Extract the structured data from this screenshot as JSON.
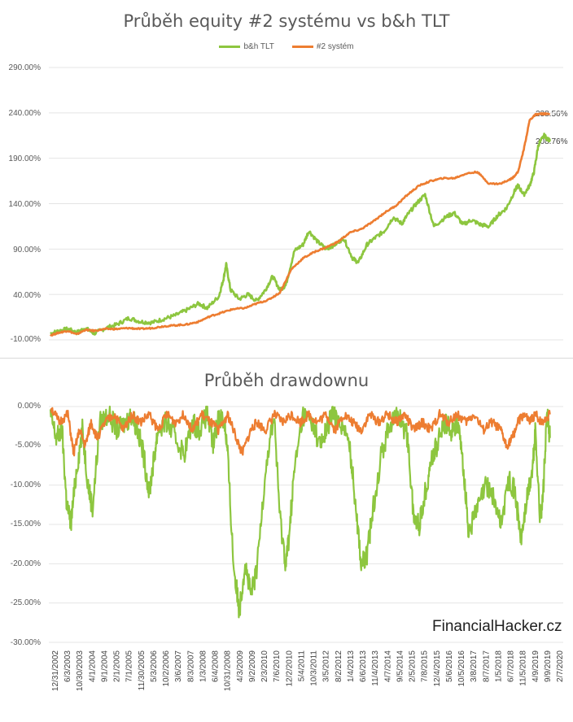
{
  "chart_data": [
    {
      "type": "line",
      "title": "Průběh equity #2 systému vs b&h TLT",
      "ylim": [
        -10,
        290
      ],
      "yticks": [
        "290.00%",
        "240.00%",
        "190.00%",
        "140.00%",
        "90.00%",
        "40.00%",
        "-10.00%"
      ],
      "ytick_values": [
        290,
        240,
        190,
        140,
        90,
        40,
        -10
      ],
      "legend_position": "top",
      "grid": true,
      "series": [
        {
          "name": "b&h TLT",
          "color": "#8dc63f",
          "x": [
            2002.9,
            2003.2,
            2003.5,
            2003.8,
            2004.1,
            2004.4,
            2004.8,
            2005.2,
            2005.6,
            2006.0,
            2006.4,
            2006.8,
            2007.2,
            2007.6,
            2008.0,
            2008.3,
            2008.7,
            2008.85,
            2008.95,
            2009.1,
            2009.4,
            2009.7,
            2010.0,
            2010.3,
            2010.55,
            2010.8,
            2011.0,
            2011.3,
            2011.6,
            2011.8,
            2012.1,
            2012.4,
            2012.7,
            2013.0,
            2013.3,
            2013.5,
            2013.8,
            2014.1,
            2014.4,
            2014.7,
            2015.0,
            2015.2,
            2015.5,
            2015.8,
            2016.1,
            2016.5,
            2016.8,
            2017.1,
            2017.4,
            2017.7,
            2018.0,
            2018.3,
            2018.6,
            2018.9,
            2019.0,
            2019.2,
            2019.4,
            2019.55,
            2019.7,
            2019.9,
            2020.1
          ],
          "y": [
            -3,
            0,
            2,
            -2,
            3,
            -3,
            3,
            7,
            14,
            10,
            9,
            13,
            17,
            23,
            30,
            25,
            38,
            56,
            73,
            45,
            35,
            40,
            33,
            45,
            60,
            45,
            50,
            88,
            95,
            110,
            98,
            90,
            95,
            102,
            80,
            75,
            95,
            103,
            110,
            125,
            118,
            128,
            140,
            150,
            115,
            125,
            130,
            117,
            122,
            117,
            115,
            127,
            135,
            155,
            160,
            150,
            160,
            175,
            205,
            215,
            208.76
          ]
        },
        {
          "name": "#2 systém",
          "color": "#ed7d31",
          "x": [
            2002.9,
            2003.2,
            2003.5,
            2003.8,
            2004.1,
            2004.4,
            2004.8,
            2005.2,
            2005.6,
            2006.0,
            2006.4,
            2006.8,
            2007.2,
            2007.6,
            2008.0,
            2008.4,
            2008.8,
            2009.2,
            2009.6,
            2010.0,
            2010.4,
            2010.8,
            2011.2,
            2011.6,
            2012.0,
            2012.4,
            2012.8,
            2013.2,
            2013.6,
            2014.0,
            2014.4,
            2014.8,
            2015.2,
            2015.6,
            2016.0,
            2016.4,
            2016.8,
            2017.2,
            2017.6,
            2018.0,
            2018.4,
            2018.8,
            2019.0,
            2019.2,
            2019.4,
            2019.6,
            2019.8,
            2020.1
          ],
          "y": [
            -5,
            -2,
            0,
            -4,
            1,
            0,
            2,
            2,
            3,
            2,
            3,
            5,
            6,
            7,
            10,
            16,
            20,
            24,
            25,
            30,
            34,
            42,
            68,
            80,
            87,
            92,
            98,
            108,
            112,
            120,
            130,
            138,
            150,
            160,
            165,
            168,
            168,
            173,
            175,
            162,
            162,
            168,
            175,
            200,
            232,
            238,
            239,
            238.56
          ]
        }
      ],
      "end_labels": [
        "238.56%",
        "208.76%"
      ]
    },
    {
      "type": "line",
      "title": "Průběh drawdownu",
      "ylim": [
        -30,
        0
      ],
      "yticks": [
        "0.00%",
        "-5.00%",
        "-10.00%",
        "-15.00%",
        "-20.00%",
        "-25.00%",
        "-30.00%"
      ],
      "ytick_values": [
        0,
        -5,
        -10,
        -15,
        -20,
        -25,
        -30
      ],
      "grid": true,
      "xticks": [
        "12/31/2002",
        "6/3/2003",
        "10/30/2003",
        "4/1/2004",
        "9/1/2004",
        "2/1/2005",
        "7/1/2005",
        "11/30/2005",
        "5/3/2006",
        "10/2/2006",
        "3/6/2007",
        "8/3/2007",
        "1/3/2008",
        "6/4/2008",
        "10/31/2008",
        "4/3/2009",
        "9/2/2009",
        "2/3/2010",
        "7/6/2010",
        "12/2/2010",
        "5/4/2011",
        "10/3/2011",
        "3/5/2012",
        "8/2/2012",
        "1/4/2013",
        "6/6/2013",
        "11/4/2013",
        "4/7/2014",
        "9/5/2014",
        "2/5/2015",
        "7/8/2015",
        "12/4/2015",
        "5/6/2016",
        "10/5/2016",
        "3/8/2017",
        "8/7/2017",
        "1/5/2018",
        "6/7/2018",
        "11/5/2018",
        "4/9/2019",
        "9/9/2019",
        "2/7/2020"
      ],
      "series": [
        {
          "name": "b&h TLT",
          "color": "#8dc63f",
          "x": [
            2002.9,
            2003.1,
            2003.3,
            2003.45,
            2003.6,
            2003.8,
            2004.0,
            2004.2,
            2004.35,
            2004.6,
            2004.9,
            2005.2,
            2005.5,
            2005.7,
            2005.9,
            2006.1,
            2006.3,
            2006.45,
            2006.6,
            2006.9,
            2007.2,
            2007.5,
            2007.8,
            2008.0,
            2008.3,
            2008.5,
            2008.7,
            2008.9,
            2009.0,
            2009.2,
            2009.4,
            2009.6,
            2009.8,
            2010.0,
            2010.3,
            2010.6,
            2010.8,
            2011.0,
            2011.1,
            2011.3,
            2011.6,
            2011.9,
            2012.2,
            2012.4,
            2012.6,
            2012.9,
            2013.2,
            2013.4,
            2013.6,
            2013.8,
            2014.0,
            2014.3,
            2014.6,
            2014.9,
            2015.2,
            2015.4,
            2015.6,
            2015.8,
            2016.0,
            2016.2,
            2016.5,
            2016.7,
            2016.9,
            2017.1,
            2017.3,
            2017.6,
            2017.9,
            2018.1,
            2018.4,
            2018.7,
            2018.9,
            2019.1,
            2019.3,
            2019.5,
            2019.6,
            2019.75,
            2019.85,
            2020.0,
            2020.1
          ],
          "y": [
            -1,
            -4,
            -3,
            -12,
            -15,
            -8,
            -3,
            -10,
            -13,
            -2,
            -1,
            -3,
            -2,
            -1,
            -3,
            -6,
            -11,
            -7,
            -3,
            -2,
            -4,
            -6,
            -2,
            -3,
            -1,
            -5,
            -1,
            -2,
            -6,
            -20,
            -26,
            -20,
            -24,
            -21,
            -8,
            -1,
            -14,
            -20,
            -17,
            -8,
            -1,
            -2,
            -5,
            -3,
            -1,
            -2,
            -5,
            -12,
            -20,
            -19,
            -13,
            -6,
            -2,
            -1,
            -4,
            -14,
            -15,
            -11,
            -7,
            -5,
            -2,
            -3,
            -2,
            -7,
            -16,
            -13,
            -10,
            -11,
            -15,
            -9,
            -11,
            -17,
            -12,
            -8,
            -3,
            -14,
            -12,
            -1,
            -4
          ]
        },
        {
          "name": "#2 systém",
          "color": "#ed7d31",
          "x": [
            2002.9,
            2003.2,
            2003.5,
            2003.7,
            2003.9,
            2004.1,
            2004.3,
            2004.5,
            2004.8,
            2005.1,
            2005.4,
            2005.7,
            2006.0,
            2006.3,
            2006.6,
            2006.9,
            2007.2,
            2007.5,
            2007.8,
            2008.1,
            2008.4,
            2008.7,
            2009.0,
            2009.3,
            2009.5,
            2009.8,
            2010.0,
            2010.3,
            2010.6,
            2010.9,
            2011.2,
            2011.5,
            2011.8,
            2012.1,
            2012.4,
            2012.7,
            2013.0,
            2013.3,
            2013.6,
            2013.9,
            2014.2,
            2014.5,
            2014.8,
            2015.1,
            2015.4,
            2015.7,
            2016.0,
            2016.3,
            2016.6,
            2016.9,
            2017.2,
            2017.5,
            2017.8,
            2018.1,
            2018.4,
            2018.6,
            2018.8,
            2019.0,
            2019.2,
            2019.4,
            2019.6,
            2019.8,
            2020.1
          ],
          "y": [
            0,
            -2,
            -1,
            -6,
            -3,
            -5,
            -2,
            -4,
            -2,
            -1,
            -3,
            -1,
            -2,
            -1,
            -3,
            -1,
            -2,
            -1,
            -3,
            -1,
            -2,
            -3,
            -1,
            -4,
            -6,
            -3,
            -2,
            -3,
            -1,
            -2,
            -1,
            -2,
            -1,
            -2,
            -1,
            -3,
            -1,
            -2,
            -3,
            -1,
            -2,
            -1,
            -2,
            -1,
            -3,
            -2,
            -3,
            -1,
            -2,
            -1,
            -2,
            -1,
            -3,
            -2,
            -3,
            -5,
            -4,
            -2,
            -1,
            -2,
            -1,
            -2,
            -1
          ]
        }
      ]
    }
  ],
  "watermark": "FinancialHacker.cz"
}
